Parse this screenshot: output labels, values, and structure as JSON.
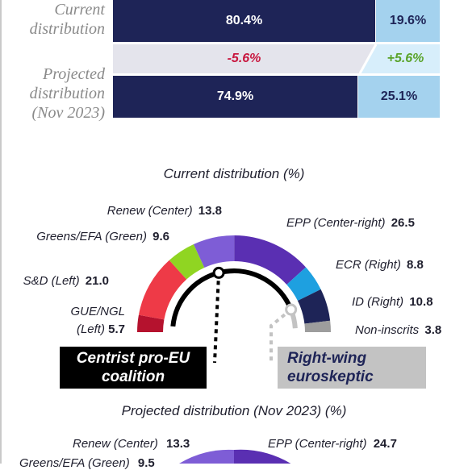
{
  "bars": {
    "current_label_1": "Current",
    "current_label_2": "distribution",
    "projected_label_1": "Projected",
    "projected_label_2": "distribution",
    "projected_label_3": "(Nov 2023)",
    "current_pro": "80.4%",
    "current_skeptic": "19.6%",
    "delta_pro": "-5.6%",
    "delta_skeptic": "+5.6%",
    "projected_pro": "74.9%",
    "projected_skeptic": "25.1%"
  },
  "current": {
    "title": "Current distribution (%)",
    "box_pro_1": "Centrist pro-EU",
    "box_pro_2": "coalition",
    "box_skeptic_1": "Right-wing",
    "box_skeptic_2": "euroskeptic"
  },
  "projected": {
    "title": "Projected distribution (Nov 2023) (%)",
    "renew_name": "Renew (Center)",
    "renew_value": "13.3",
    "epp_name": "EPP (Center-right)",
    "epp_value": "24.7",
    "greens_name": "Greens/EFA (Green)",
    "greens_value": "9.5"
  },
  "chart_data": [
    {
      "type": "bar",
      "categories": [
        "Current distribution",
        "Projected distribution (Nov 2023)"
      ],
      "series": [
        {
          "name": "Centrist pro-EU coalition",
          "values": [
            80.4,
            74.9
          ]
        },
        {
          "name": "Right-wing euroskeptic",
          "values": [
            19.6,
            25.1
          ]
        }
      ],
      "annotations": {
        "change_pro": -5.6,
        "change_skeptic": 5.6
      }
    },
    {
      "type": "pie",
      "title": "Current distribution (%)",
      "labels": [
        "GUE/NGL (Left)",
        "S&D (Left)",
        "Greens/EFA (Green)",
        "Renew (Center)",
        "EPP (Center-right)",
        "ECR (Right)",
        "ID (Right)",
        "Non-inscrits"
      ],
      "display_labels": [
        "GUE/NGL|(Left)",
        "S&D (Left)",
        "Greens/EFA (Green)",
        "Renew (Center)",
        "EPP (Center-right)",
        "ECR (Right)",
        "ID (Right)",
        "Non-inscrits"
      ],
      "values": [
        5.7,
        21.0,
        9.6,
        13.8,
        26.5,
        8.8,
        10.8,
        3.8
      ],
      "value_labels": [
        "5.7",
        "21.0",
        "9.6",
        "13.8",
        "26.5",
        "8.8",
        "10.8",
        "3.8"
      ],
      "colors": [
        "#b5122e",
        "#ee3a47",
        "#90d522",
        "#7e5dd6",
        "#5a2fb2",
        "#1ea0e0",
        "#1e2457",
        "#9d9d9d"
      ],
      "shape": "semicircle",
      "coalition_range": [
        2,
        5
      ],
      "euroskeptic_range": [
        6,
        8
      ]
    },
    {
      "type": "pie",
      "title": "Projected distribution (Nov 2023) (%)",
      "labels": [
        "Greens/EFA (Green)",
        "Renew (Center)",
        "EPP (Center-right)"
      ],
      "values": [
        9.5,
        13.3,
        24.7
      ],
      "shape": "semicircle"
    }
  ]
}
